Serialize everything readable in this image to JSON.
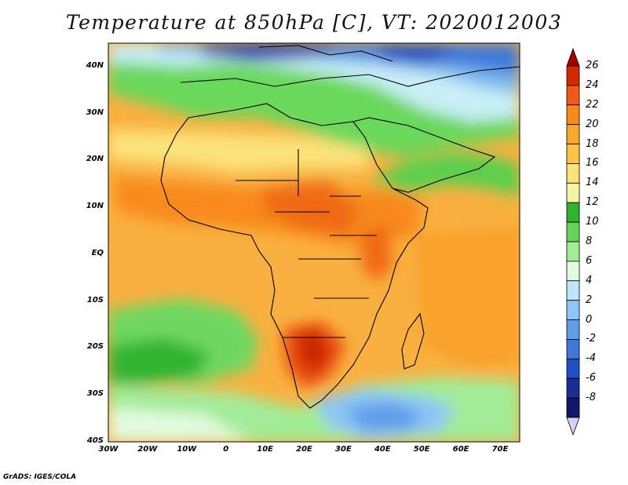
{
  "title": "Temperature at 850hPa [C], VT: 2020012003",
  "credit": "GrADS: IGES/COLA",
  "map": {
    "lat_labels": [
      "40N",
      "30N",
      "20N",
      "10N",
      "EQ",
      "10S",
      "20S",
      "30S",
      "40S"
    ],
    "lon_labels": [
      "30W",
      "20W",
      "10W",
      "0",
      "10E",
      "20E",
      "30E",
      "40E",
      "50E",
      "60E",
      "70E"
    ],
    "extent": {
      "lon_min": -30,
      "lon_max": 75,
      "lat_min": -40,
      "lat_max": 45
    }
  },
  "colorbar": {
    "labels": [
      "26",
      "24",
      "22",
      "20",
      "18",
      "16",
      "14",
      "12",
      "10",
      "8",
      "6",
      "4",
      "2",
      "0",
      "-2",
      "-4",
      "-6",
      "-8"
    ],
    "colors": [
      "#a00000",
      "#d42a04",
      "#f05818",
      "#f88a1c",
      "#faa72c",
      "#fbc447",
      "#fbe27a",
      "#f6f5a2",
      "#2fb32f",
      "#69d25a",
      "#a2ec98",
      "#e2fbe0",
      "#c0e4fb",
      "#8dc5f6",
      "#5e9de8",
      "#3e78db",
      "#2350c2",
      "#1a2d94",
      "#0f1766",
      "#d2d2f6"
    ]
  }
}
